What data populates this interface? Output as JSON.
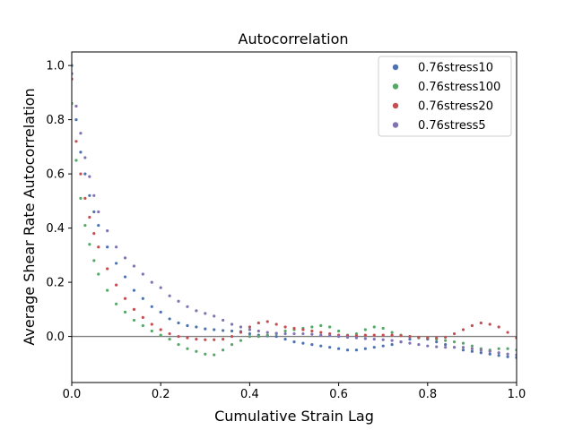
{
  "chart_data": {
    "type": "scatter",
    "title": "Autocorrelation",
    "xlabel": "Cumulative Strain Lag",
    "ylabel": "Average Shear Rate Autocorrelation",
    "xlim": [
      0.0,
      1.0
    ],
    "ylim": [
      -0.17,
      1.05
    ],
    "xticks": [
      0.0,
      0.2,
      0.4,
      0.6,
      0.8,
      1.0
    ],
    "xtick_labels": [
      "0.0",
      "0.2",
      "0.4",
      "0.6",
      "0.8",
      "1.0"
    ],
    "yticks": [
      0.0,
      0.2,
      0.4,
      0.6,
      0.8,
      1.0
    ],
    "ytick_labels": [
      "0.0",
      "0.2",
      "0.4",
      "0.6",
      "0.8",
      "1.0"
    ],
    "reference_line_y": 0.0,
    "grid": false,
    "legend_position": "top-right",
    "series": [
      {
        "name": "0.76stress10",
        "color": "#4c72b0",
        "x": [
          0.0,
          0.01,
          0.02,
          0.03,
          0.04,
          0.05,
          0.06,
          0.08,
          0.1,
          0.12,
          0.14,
          0.16,
          0.18,
          0.2,
          0.22,
          0.24,
          0.26,
          0.28,
          0.3,
          0.32,
          0.34,
          0.36,
          0.38,
          0.4,
          0.42,
          0.44,
          0.46,
          0.48,
          0.5,
          0.52,
          0.54,
          0.56,
          0.58,
          0.6,
          0.62,
          0.64,
          0.66,
          0.68,
          0.7,
          0.72,
          0.74,
          0.76,
          0.78,
          0.8,
          0.82,
          0.84,
          0.86,
          0.88,
          0.9,
          0.92,
          0.94,
          0.96,
          0.98,
          1.0
        ],
        "y": [
          1.0,
          0.8,
          0.68,
          0.6,
          0.52,
          0.46,
          0.41,
          0.33,
          0.27,
          0.22,
          0.17,
          0.14,
          0.11,
          0.09,
          0.065,
          0.05,
          0.04,
          0.035,
          0.028,
          0.025,
          0.022,
          0.02,
          0.018,
          0.01,
          0.005,
          0.002,
          0.0,
          -0.01,
          -0.02,
          -0.025,
          -0.03,
          -0.035,
          -0.04,
          -0.045,
          -0.05,
          -0.05,
          -0.045,
          -0.04,
          -0.035,
          -0.03,
          -0.02,
          -0.01,
          -0.005,
          -0.01,
          -0.02,
          -0.03,
          -0.04,
          -0.05,
          -0.055,
          -0.06,
          -0.065,
          -0.07,
          -0.075,
          -0.078
        ]
      },
      {
        "name": "0.76stress100",
        "color": "#55a868",
        "x": [
          0.0,
          0.01,
          0.02,
          0.03,
          0.04,
          0.05,
          0.06,
          0.08,
          0.1,
          0.12,
          0.14,
          0.16,
          0.18,
          0.2,
          0.22,
          0.24,
          0.26,
          0.28,
          0.3,
          0.32,
          0.34,
          0.36,
          0.38,
          0.4,
          0.42,
          0.44,
          0.46,
          0.48,
          0.5,
          0.52,
          0.54,
          0.56,
          0.58,
          0.6,
          0.62,
          0.64,
          0.66,
          0.68,
          0.7,
          0.72,
          0.74,
          0.76,
          0.78,
          0.8,
          0.82,
          0.84,
          0.86,
          0.88,
          0.9,
          0.92,
          0.94,
          0.96,
          0.98,
          1.0
        ],
        "y": [
          0.86,
          0.65,
          0.51,
          0.41,
          0.34,
          0.28,
          0.23,
          0.17,
          0.12,
          0.09,
          0.06,
          0.04,
          0.02,
          0.005,
          -0.01,
          -0.03,
          -0.045,
          -0.055,
          -0.065,
          -0.068,
          -0.05,
          -0.03,
          -0.015,
          0.0,
          0.0,
          0.005,
          0.01,
          0.02,
          0.025,
          0.03,
          0.035,
          0.04,
          0.035,
          0.02,
          0.005,
          0.01,
          0.025,
          0.035,
          0.03,
          0.015,
          0.005,
          0.0,
          -0.005,
          -0.005,
          -0.01,
          -0.015,
          -0.02,
          -0.025,
          -0.035,
          -0.045,
          -0.05,
          -0.045,
          -0.045,
          -0.05
        ]
      },
      {
        "name": "0.76stress20",
        "color": "#c44e52",
        "x": [
          0.0,
          0.01,
          0.02,
          0.03,
          0.04,
          0.05,
          0.06,
          0.08,
          0.1,
          0.12,
          0.14,
          0.16,
          0.18,
          0.2,
          0.22,
          0.24,
          0.26,
          0.28,
          0.3,
          0.32,
          0.34,
          0.36,
          0.38,
          0.4,
          0.42,
          0.44,
          0.46,
          0.48,
          0.5,
          0.52,
          0.54,
          0.56,
          0.58,
          0.6,
          0.62,
          0.64,
          0.66,
          0.68,
          0.7,
          0.72,
          0.74,
          0.76,
          0.78,
          0.8,
          0.82,
          0.84,
          0.86,
          0.88,
          0.9,
          0.92,
          0.94,
          0.96,
          0.98,
          1.0
        ],
        "y": [
          0.95,
          0.72,
          0.6,
          0.51,
          0.44,
          0.38,
          0.33,
          0.25,
          0.19,
          0.14,
          0.1,
          0.07,
          0.045,
          0.025,
          0.01,
          0.0,
          -0.005,
          -0.01,
          -0.012,
          -0.012,
          -0.01,
          0.0,
          0.015,
          0.035,
          0.05,
          0.055,
          0.045,
          0.035,
          0.03,
          0.025,
          0.02,
          0.015,
          0.01,
          0.005,
          0.003,
          0.003,
          0.005,
          0.005,
          0.005,
          0.005,
          0.003,
          0.0,
          -0.003,
          -0.005,
          -0.005,
          -0.003,
          0.01,
          0.025,
          0.04,
          0.05,
          0.045,
          0.035,
          0.015,
          -0.005
        ]
      },
      {
        "name": "0.76stress5",
        "color": "#8172b2",
        "x": [
          0.0,
          0.01,
          0.02,
          0.03,
          0.04,
          0.05,
          0.06,
          0.08,
          0.1,
          0.12,
          0.14,
          0.16,
          0.18,
          0.2,
          0.22,
          0.24,
          0.26,
          0.28,
          0.3,
          0.32,
          0.34,
          0.36,
          0.38,
          0.4,
          0.42,
          0.44,
          0.46,
          0.48,
          0.5,
          0.52,
          0.54,
          0.56,
          0.58,
          0.6,
          0.62,
          0.64,
          0.66,
          0.68,
          0.7,
          0.72,
          0.74,
          0.76,
          0.78,
          0.8,
          0.82,
          0.84,
          0.86,
          0.88,
          0.9,
          0.92,
          0.94,
          0.96,
          0.98,
          1.0
        ],
        "y": [
          0.97,
          0.85,
          0.75,
          0.66,
          0.59,
          0.52,
          0.46,
          0.39,
          0.33,
          0.29,
          0.26,
          0.23,
          0.2,
          0.18,
          0.15,
          0.13,
          0.11,
          0.095,
          0.085,
          0.075,
          0.06,
          0.045,
          0.035,
          0.025,
          0.02,
          0.015,
          0.012,
          0.01,
          0.01,
          0.01,
          0.008,
          0.005,
          0.003,
          0.0,
          -0.003,
          -0.005,
          -0.008,
          -0.01,
          -0.012,
          -0.015,
          -0.02,
          -0.025,
          -0.03,
          -0.035,
          -0.038,
          -0.04,
          -0.04,
          -0.04,
          -0.045,
          -0.05,
          -0.055,
          -0.06,
          -0.065,
          -0.068
        ]
      }
    ]
  }
}
